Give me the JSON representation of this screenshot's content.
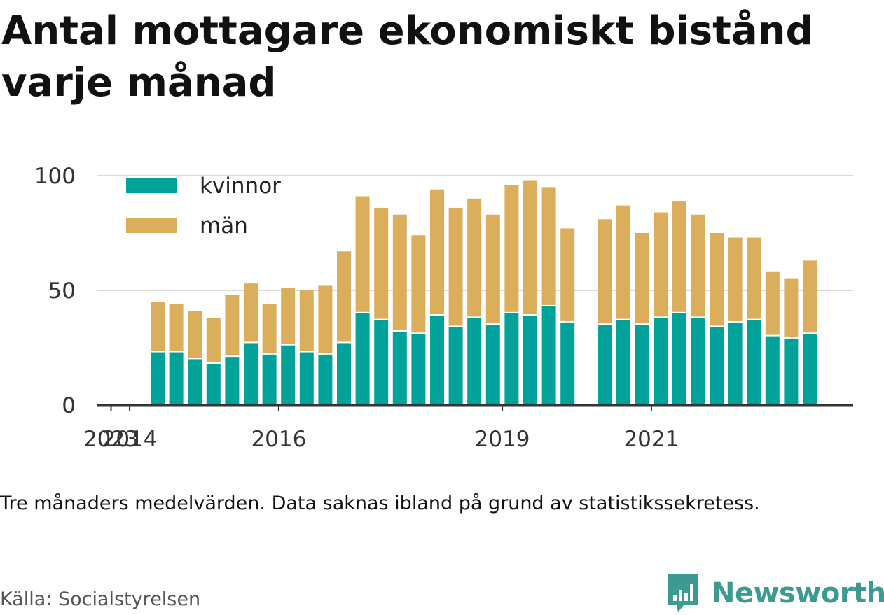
{
  "title": "Antal mottagare ekonomiskt bistånd varje månad",
  "note": "Tre månaders medelvärden. Data saknas ibland på grund av statistikssekretess.",
  "source": "Källa: Socialstyrelsen",
  "brand": {
    "name": "Newsworthy",
    "icon": "newsworthy-logo-icon",
    "color": "#3d9a93"
  },
  "chart_data": {
    "type": "bar",
    "stacked": true,
    "title": "Antal mottagare ekonomiskt bistånd varje månad",
    "xlabel": "",
    "ylabel": "",
    "ylim": [
      0,
      100
    ],
    "yticks": [
      0,
      50,
      100
    ],
    "xticks": [
      "2014",
      "2016",
      "2019",
      "2021",
      "2023"
    ],
    "grid": true,
    "legend_position": "top-left",
    "categories": [
      "2014Q3",
      "2014Q4",
      "2015Q1",
      "2015Q2",
      "2015Q3",
      "2015Q4",
      "2016Q1",
      "2016Q2",
      "2016Q3",
      "2016Q4",
      "2017Q1",
      "2017Q2",
      "2017Q3",
      "2017Q4",
      "2018Q1",
      "2018Q2",
      "2018Q3",
      "2018Q4",
      "2019Q1",
      "2019Q2",
      "2019Q3",
      "2019Q4",
      "2020Q1",
      "2020Q2",
      "2020Q3",
      "2020Q4",
      "2021Q1",
      "2021Q2",
      "2021Q3",
      "2021Q4",
      "2022Q1",
      "2022Q2",
      "2022Q3",
      "2022Q4",
      "2023Q1",
      "2023Q2"
    ],
    "series": [
      {
        "name": "kvinnor",
        "color": "#00a29a",
        "values": [
          23,
          23,
          20,
          18,
          21,
          27,
          22,
          26,
          23,
          22,
          27,
          40,
          37,
          32,
          31,
          39,
          34,
          38,
          35,
          40,
          39,
          43,
          36,
          null,
          35,
          37,
          35,
          38,
          40,
          38,
          34,
          36,
          37,
          30,
          29,
          31
        ]
      },
      {
        "name": "män",
        "color": "#dbae5c",
        "values": [
          22,
          21,
          21,
          20,
          27,
          26,
          22,
          25,
          27,
          30,
          40,
          51,
          49,
          51,
          43,
          55,
          52,
          52,
          48,
          56,
          59,
          52,
          41,
          null,
          46,
          50,
          40,
          46,
          49,
          45,
          41,
          37,
          36,
          28,
          26,
          32
        ]
      }
    ]
  }
}
